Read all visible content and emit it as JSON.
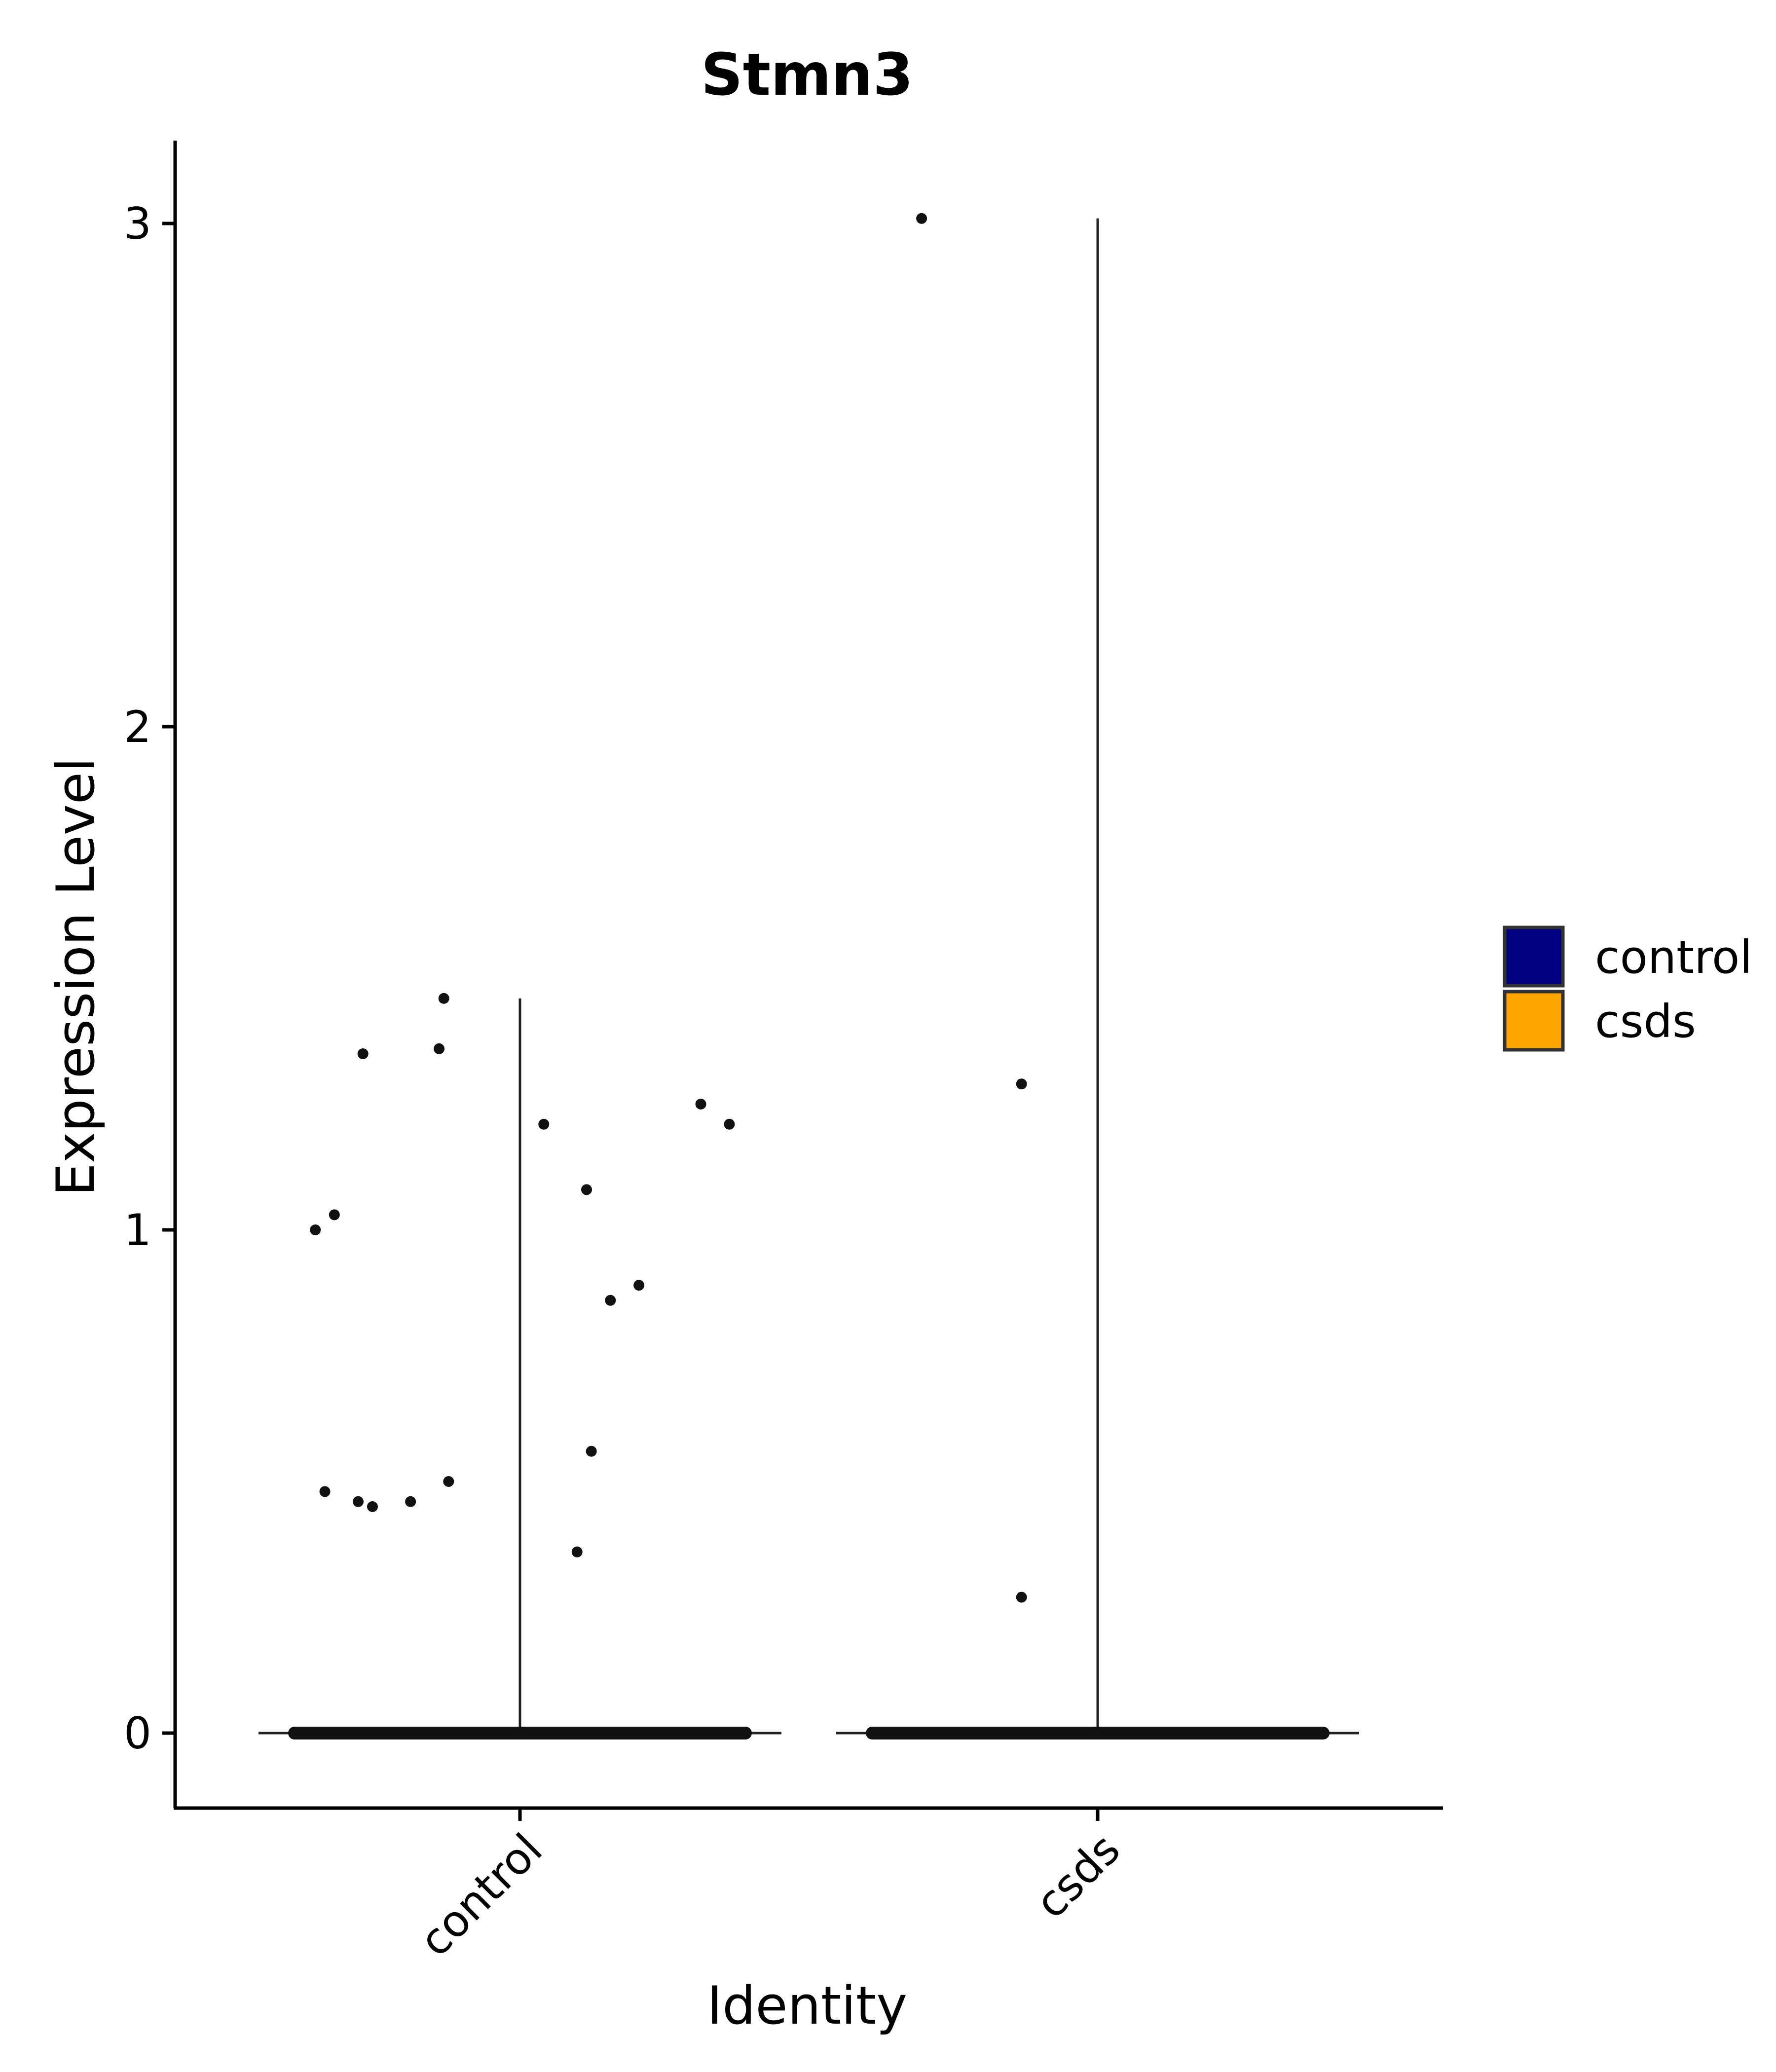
{
  "chart_data": {
    "type": "violin",
    "title": "Stmn3",
    "xlabel": "Identity",
    "ylabel": "Expression Level",
    "categories": [
      "control",
      "csds"
    ],
    "ylim": [
      -0.15,
      3.17
    ],
    "yticks": [
      "0",
      "1",
      "2",
      "3"
    ],
    "grid": false,
    "legend": {
      "placement": "right",
      "entries": [
        {
          "label": "control",
          "color": "#000080"
        },
        {
          "label": "csds",
          "color": "#FFA500"
        }
      ]
    },
    "series": [
      {
        "category": "control",
        "color": "#000080",
        "max": 1.46,
        "points": [
          {
            "jitter": -0.43,
            "y": 1.0
          },
          {
            "jitter": -0.39,
            "y": 1.03
          },
          {
            "jitter": -0.33,
            "y": 1.35
          },
          {
            "jitter": -0.17,
            "y": 1.36
          },
          {
            "jitter": -0.16,
            "y": 1.46
          },
          {
            "jitter": 0.05,
            "y": 1.21
          },
          {
            "jitter": 0.14,
            "y": 1.08
          },
          {
            "jitter": 0.19,
            "y": 0.86
          },
          {
            "jitter": 0.25,
            "y": 0.89
          },
          {
            "jitter": 0.38,
            "y": 1.25
          },
          {
            "jitter": 0.44,
            "y": 1.21
          },
          {
            "jitter": -0.41,
            "y": 0.48
          },
          {
            "jitter": -0.34,
            "y": 0.46
          },
          {
            "jitter": -0.31,
            "y": 0.45
          },
          {
            "jitter": -0.23,
            "y": 0.46
          },
          {
            "jitter": -0.15,
            "y": 0.5
          },
          {
            "jitter": 0.15,
            "y": 0.56
          },
          {
            "jitter": 0.12,
            "y": 0.36
          }
        ]
      },
      {
        "category": "csds",
        "color": "#FFA500",
        "max": 3.01,
        "points": [
          {
            "jitter": -0.37,
            "y": 3.01
          },
          {
            "jitter": -0.16,
            "y": 1.29
          },
          {
            "jitter": -0.16,
            "y": 0.27
          }
        ]
      }
    ]
  }
}
